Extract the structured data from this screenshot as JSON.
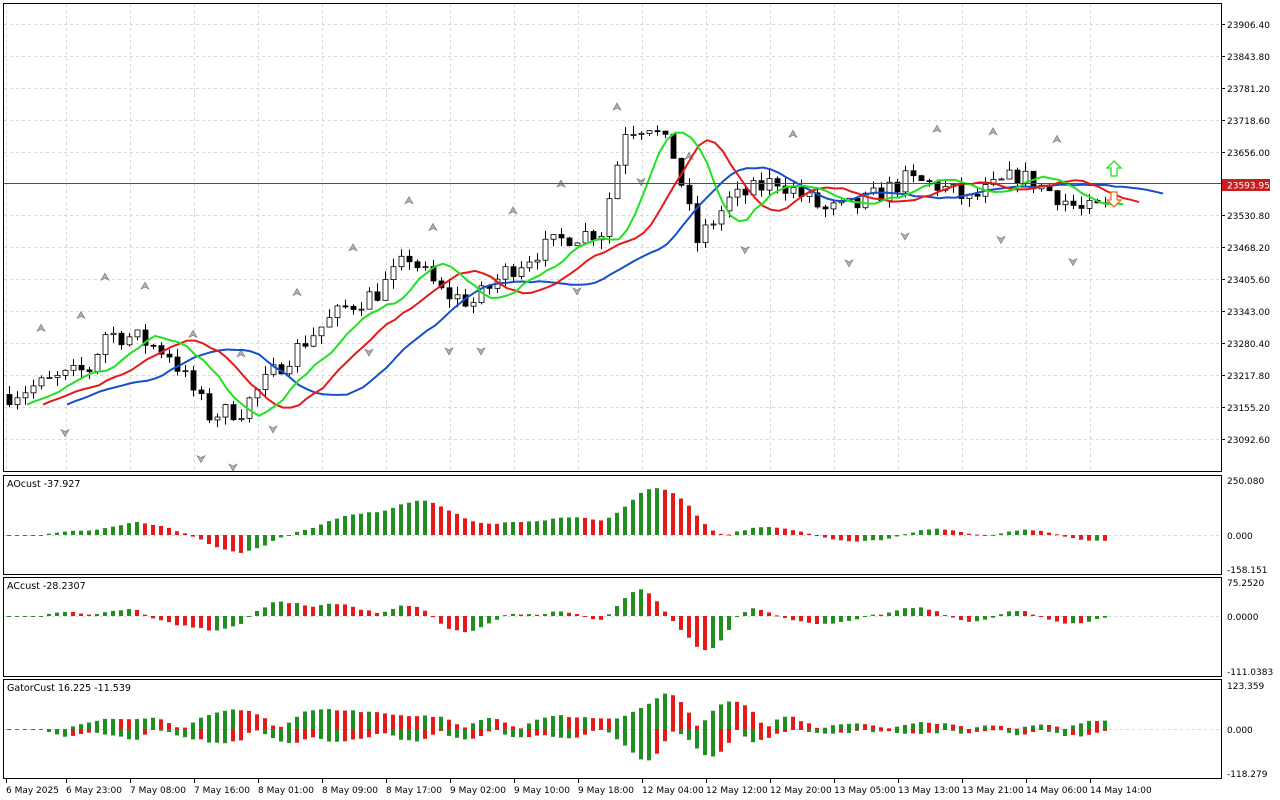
{
  "colors": {
    "background": "#ffffff",
    "grid": "#d9d9d9",
    "candle_bull": "#ffffff",
    "candle_bear": "#000000",
    "alligator_jaw": "#1450c8",
    "alligator_teeth": "#e41a1a",
    "alligator_lips": "#22e022",
    "bar_up": "#1f8f1f",
    "bar_down": "#e41a1a",
    "price_line": "#c81e1e"
  },
  "chart_data": [
    {
      "type": "candlestick",
      "panel": "price",
      "current_price": "23593.95",
      "current_price_value": 23593.95,
      "ylim": [
        23030,
        23945
      ],
      "y_ticks": [
        "23906.40",
        "23843.80",
        "23781.20",
        "23718.60",
        "23656.00",
        "23593.95",
        "23530.80",
        "23468.20",
        "23405.60",
        "23343.00",
        "23280.40",
        "23217.80",
        "23155.20",
        "23092.60"
      ],
      "x_ticks": [
        "6 May 2025",
        "6 May 23:00",
        "7 May 08:00",
        "7 May 16:00",
        "8 May 01:00",
        "8 May 09:00",
        "8 May 17:00",
        "9 May 02:00",
        "9 May 10:00",
        "9 May 18:00",
        "12 May 04:00",
        "12 May 12:00",
        "12 May 20:00",
        "13 May 05:00",
        "13 May 13:00",
        "13 May 21:00",
        "14 May 06:00",
        "14 May 14:00"
      ],
      "signals": [
        {
          "label": "buy",
          "icon": "up-arrow-icon",
          "color": "#22e022",
          "price": 23636
        },
        {
          "label": "sell",
          "icon": "down-arrow-icon",
          "color": "#e41a1a",
          "price": 23578
        }
      ],
      "series": [
        {
          "name": "Jaw",
          "color": "#1450c8"
        },
        {
          "name": "Teeth",
          "color": "#e41a1a"
        },
        {
          "name": "Lips",
          "color": "#22e022"
        }
      ]
    },
    {
      "type": "bar",
      "panel": "ao",
      "title": "AOcust -37.927",
      "ylim": [
        -158.151,
        250.08
      ],
      "y_ticks": [
        "250.080",
        "0.000",
        "-158.151"
      ]
    },
    {
      "type": "bar",
      "panel": "ac",
      "title": "ACcust -28.2307",
      "ylim": [
        -111.0383,
        75.252
      ],
      "y_ticks": [
        "75.2520",
        "0.0000",
        "-111.0383"
      ]
    },
    {
      "type": "bar",
      "panel": "gator",
      "title": "GatorCust 16.225 -11.539",
      "ylim": [
        -118.279,
        123.359
      ],
      "y_ticks": [
        "123.359",
        "0.000",
        "-118.279"
      ]
    }
  ]
}
